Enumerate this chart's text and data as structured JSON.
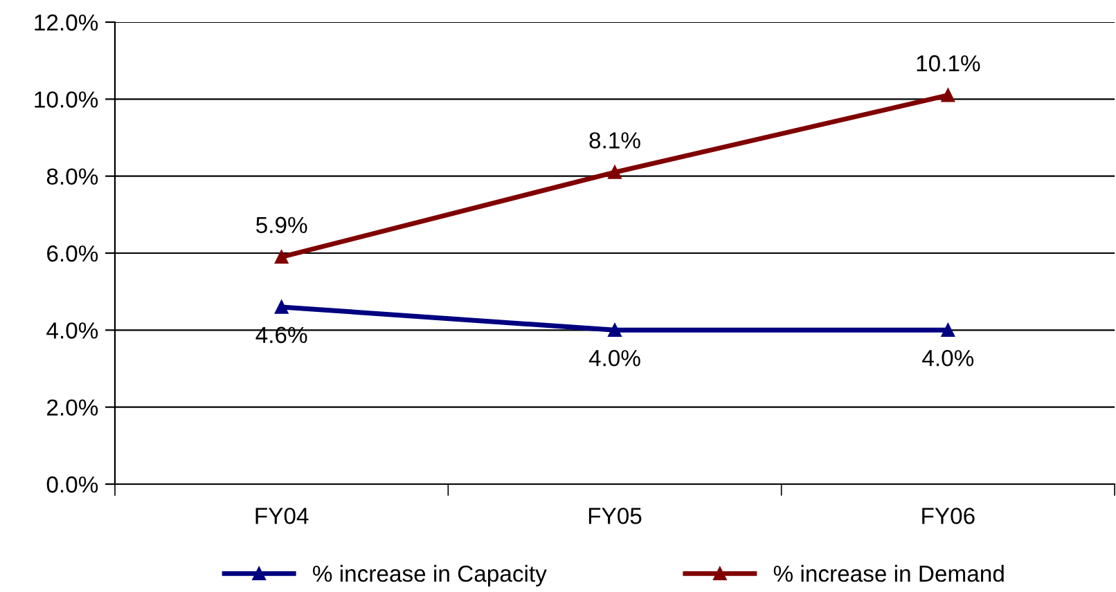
{
  "chart_data": {
    "type": "line",
    "categories": [
      "FY04",
      "FY05",
      "FY06"
    ],
    "series": [
      {
        "name": "% increase in Capacity",
        "color": "#000080",
        "values": [
          4.6,
          4.0,
          4.0
        ],
        "value_labels": [
          "4.6%",
          "4.0%",
          "4.0%"
        ]
      },
      {
        "name": "% increase in Demand",
        "color": "#800000",
        "values": [
          5.9,
          8.1,
          10.1
        ],
        "value_labels": [
          "5.9%",
          "8.1%",
          "10.1%"
        ]
      }
    ],
    "ylim": [
      0,
      12
    ],
    "yticks": [
      {
        "value": 0,
        "label": "0.0%"
      },
      {
        "value": 2,
        "label": "2.0%"
      },
      {
        "value": 4,
        "label": "4.0%"
      },
      {
        "value": 6,
        "label": "6.0%"
      },
      {
        "value": 8,
        "label": "8.0%"
      },
      {
        "value": 10,
        "label": "10.0%"
      },
      {
        "value": 12,
        "label": "12.0%"
      }
    ],
    "grid": "y",
    "legend": "bottom",
    "marker": "triangle",
    "line_style": "solid"
  }
}
